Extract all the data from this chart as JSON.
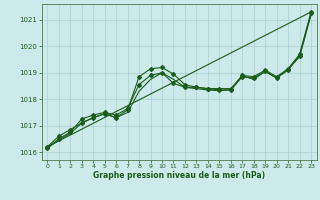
{
  "title": "Graphe pression niveau de la mer (hPa)",
  "bg_color": "#cceaea",
  "grid_color": "#aad0d0",
  "line_color": "#1a5c1a",
  "xlim": [
    -0.5,
    23.5
  ],
  "ylim": [
    1015.7,
    1021.6
  ],
  "yticks": [
    1016,
    1017,
    1018,
    1019,
    1020,
    1021
  ],
  "xticks": [
    0,
    1,
    2,
    3,
    4,
    5,
    6,
    7,
    8,
    9,
    10,
    11,
    12,
    13,
    14,
    15,
    16,
    17,
    18,
    19,
    20,
    21,
    22,
    23
  ],
  "series1": [
    [
      0,
      1016.2
    ],
    [
      1,
      1016.6
    ],
    [
      2,
      1016.85
    ],
    [
      3,
      1017.1
    ],
    [
      4,
      1017.3
    ],
    [
      5,
      1017.45
    ],
    [
      6,
      1017.3
    ],
    [
      7,
      1017.6
    ],
    [
      8,
      1018.85
    ],
    [
      9,
      1019.15
    ],
    [
      10,
      1019.2
    ],
    [
      11,
      1018.95
    ],
    [
      12,
      1018.55
    ],
    [
      13,
      1018.45
    ],
    [
      14,
      1018.4
    ],
    [
      15,
      1018.35
    ],
    [
      16,
      1018.35
    ],
    [
      17,
      1018.85
    ],
    [
      18,
      1018.8
    ],
    [
      19,
      1019.05
    ],
    [
      20,
      1018.8
    ],
    [
      21,
      1019.1
    ],
    [
      22,
      1019.65
    ],
    [
      23,
      1021.25
    ]
  ],
  "series2": [
    [
      0,
      1016.15
    ],
    [
      1,
      1016.5
    ],
    [
      2,
      1016.75
    ],
    [
      3,
      1017.25
    ],
    [
      4,
      1017.4
    ],
    [
      5,
      1017.5
    ],
    [
      6,
      1017.4
    ],
    [
      7,
      1017.65
    ],
    [
      8,
      1018.55
    ],
    [
      9,
      1018.9
    ],
    [
      10,
      1019.0
    ],
    [
      11,
      1018.6
    ],
    [
      12,
      1018.45
    ],
    [
      13,
      1018.45
    ],
    [
      14,
      1018.4
    ],
    [
      15,
      1018.4
    ],
    [
      16,
      1018.4
    ],
    [
      17,
      1018.9
    ],
    [
      18,
      1018.85
    ],
    [
      19,
      1019.1
    ],
    [
      20,
      1018.85
    ],
    [
      21,
      1019.15
    ],
    [
      22,
      1019.7
    ],
    [
      23,
      1021.3
    ]
  ],
  "series3_linear": [
    [
      0,
      1016.2
    ],
    [
      23,
      1021.3
    ]
  ],
  "series4": [
    [
      0,
      1016.15
    ],
    [
      1,
      1016.45
    ],
    [
      2,
      1016.7
    ],
    [
      3,
      1017.1
    ],
    [
      4,
      1017.3
    ],
    [
      5,
      1017.45
    ],
    [
      6,
      1017.3
    ],
    [
      7,
      1017.5
    ],
    [
      8,
      1018.3
    ],
    [
      9,
      1018.75
    ],
    [
      10,
      1019.0
    ],
    [
      11,
      1018.75
    ],
    [
      12,
      1018.45
    ],
    [
      13,
      1018.4
    ],
    [
      14,
      1018.35
    ],
    [
      15,
      1018.32
    ],
    [
      16,
      1018.35
    ],
    [
      17,
      1018.88
    ],
    [
      18,
      1018.75
    ],
    [
      19,
      1019.05
    ],
    [
      20,
      1018.8
    ],
    [
      21,
      1019.15
    ],
    [
      22,
      1019.6
    ],
    [
      23,
      1021.2
    ]
  ]
}
